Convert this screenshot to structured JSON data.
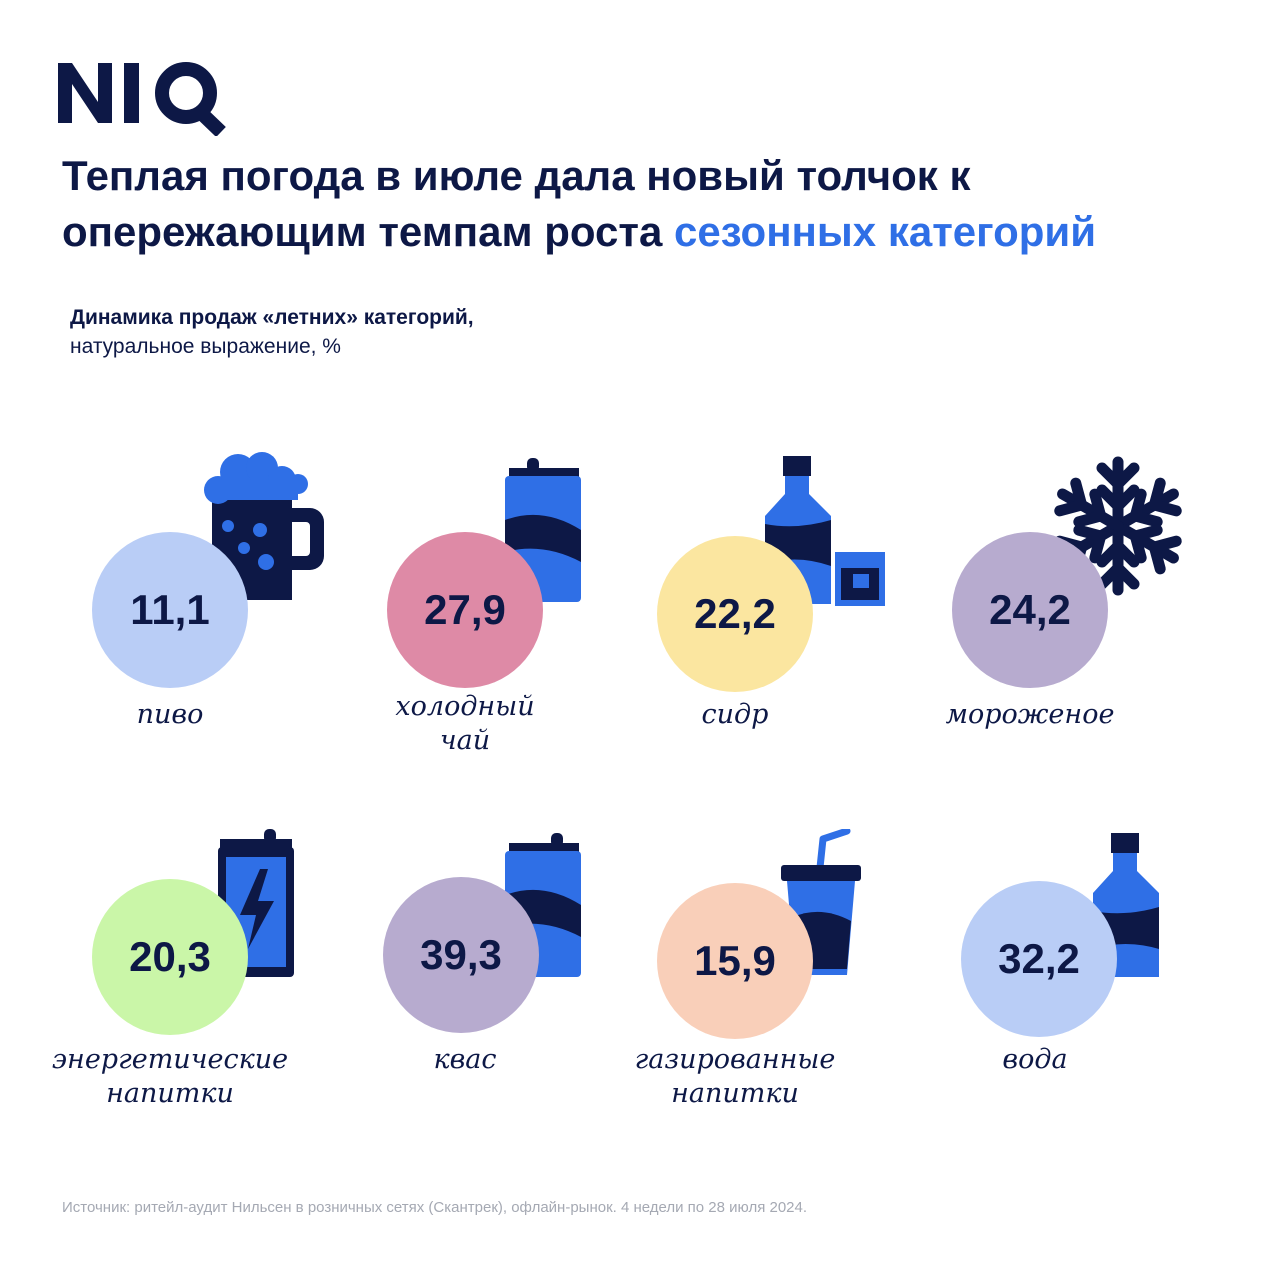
{
  "brand": {
    "logo_text": "NIQ",
    "navy": "#0d1846",
    "accent": "#2f6fe6"
  },
  "title": {
    "part1": "Теплая погода в июле дала новый толчок к опережающим темпам роста ",
    "highlight": "сезонных категорий"
  },
  "subtitle": {
    "line1": "Динамика продаж «летних» категорий,",
    "line2": "натуральное выражение, %"
  },
  "chart_data": {
    "type": "bubble-icons",
    "unit": "%",
    "items": [
      {
        "category": "пиво",
        "value": "11,1",
        "icon": "beer-mug-icon",
        "color": "#b9cdf6"
      },
      {
        "category": "холодный чай",
        "value": "27,9",
        "icon": "can-icon",
        "color": "#de8aa6"
      },
      {
        "category": "сидр",
        "value": "22,2",
        "icon": "bottle-glass-icon",
        "color": "#fbe6a0"
      },
      {
        "category": "мороженое",
        "value": "24,2",
        "icon": "snowflake-icon",
        "color": "#b7abcf"
      },
      {
        "category": "энергетические напитки",
        "value": "20,3",
        "icon": "energy-can-icon",
        "color": "#caf6a8"
      },
      {
        "category": "квас",
        "value": "39,3",
        "icon": "can-icon",
        "color": "#b7abcf"
      },
      {
        "category": "газированные напитки",
        "value": "15,9",
        "icon": "soda-cup-icon",
        "color": "#f9cfb9"
      },
      {
        "category": "вода",
        "value": "32,2",
        "icon": "water-bottle-icon",
        "color": "#b9cdf6"
      }
    ]
  },
  "labels": [
    [
      "пиво"
    ],
    [
      "холодный",
      "чай"
    ],
    [
      "сидр"
    ],
    [
      "мороженое"
    ],
    [
      "энергетические",
      "напитки"
    ],
    [
      "квас"
    ],
    [
      "газированные",
      "напитки"
    ],
    [
      "вода"
    ]
  ],
  "source": "Источник: ритейл-аудит Нильсен в розничных сетях (Скантрек), офлайн-рынок. 4 недели по 28 июля 2024."
}
